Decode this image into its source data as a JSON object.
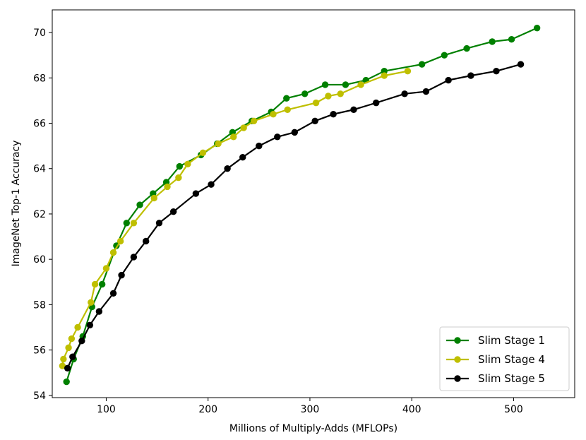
{
  "chart_data": {
    "type": "line",
    "title": "",
    "xlabel": "Millions of Multiply-Adds (MFLOPs)",
    "ylabel": "ImageNet Top-1 Accuracy",
    "xlim": [
      47,
      560
    ],
    "ylim": [
      53.9,
      71.0
    ],
    "xticks": [
      100,
      200,
      300,
      400,
      500
    ],
    "yticks": [
      54,
      56,
      58,
      60,
      62,
      64,
      66,
      68,
      70
    ],
    "grid": false,
    "legend_position": "lower-right",
    "series": [
      {
        "name": "Slim Stage 1",
        "color": "#008000",
        "points": [
          [
            61,
            54.6
          ],
          [
            68,
            55.6
          ],
          [
            77,
            56.6
          ],
          [
            86,
            57.9
          ],
          [
            96,
            58.9
          ],
          [
            110,
            60.6
          ],
          [
            120,
            61.6
          ],
          [
            133,
            62.4
          ],
          [
            146,
            62.9
          ],
          [
            159,
            63.4
          ],
          [
            172,
            64.1
          ],
          [
            193,
            64.6
          ],
          [
            209,
            65.1
          ],
          [
            224,
            65.6
          ],
          [
            243,
            66.1
          ],
          [
            262,
            66.5
          ],
          [
            277,
            67.1
          ],
          [
            295,
            67.3
          ],
          [
            315,
            67.7
          ],
          [
            335,
            67.7
          ],
          [
            355,
            67.9
          ],
          [
            373,
            68.3
          ],
          [
            410,
            68.6
          ],
          [
            432,
            69.0
          ],
          [
            454,
            69.3
          ],
          [
            479,
            69.6
          ],
          [
            498,
            69.7
          ],
          [
            523,
            70.2
          ]
        ]
      },
      {
        "name": "Slim Stage 4",
        "color": "#bfbf00",
        "points": [
          [
            57,
            55.3
          ],
          [
            58,
            55.6
          ],
          [
            63,
            56.1
          ],
          [
            66,
            56.5
          ],
          [
            72,
            57.0
          ],
          [
            85,
            58.1
          ],
          [
            89,
            58.9
          ],
          [
            100,
            59.6
          ],
          [
            107,
            60.3
          ],
          [
            114,
            60.8
          ],
          [
            127,
            61.6
          ],
          [
            147,
            62.7
          ],
          [
            160,
            63.2
          ],
          [
            171,
            63.6
          ],
          [
            180,
            64.2
          ],
          [
            195,
            64.7
          ],
          [
            210,
            65.1
          ],
          [
            225,
            65.4
          ],
          [
            235,
            65.8
          ],
          [
            245,
            66.1
          ],
          [
            264,
            66.4
          ],
          [
            278,
            66.6
          ],
          [
            306,
            66.9
          ],
          [
            318,
            67.2
          ],
          [
            330,
            67.3
          ],
          [
            350,
            67.7
          ],
          [
            373,
            68.1
          ],
          [
            396,
            68.3
          ]
        ]
      },
      {
        "name": "Slim Stage 5",
        "color": "#000000",
        "points": [
          [
            62,
            55.2
          ],
          [
            67,
            55.7
          ],
          [
            76,
            56.4
          ],
          [
            84,
            57.1
          ],
          [
            93,
            57.7
          ],
          [
            107,
            58.5
          ],
          [
            115,
            59.3
          ],
          [
            127,
            60.1
          ],
          [
            139,
            60.8
          ],
          [
            152,
            61.6
          ],
          [
            166,
            62.1
          ],
          [
            188,
            62.9
          ],
          [
            203,
            63.3
          ],
          [
            219,
            64.0
          ],
          [
            234,
            64.5
          ],
          [
            250,
            65.0
          ],
          [
            268,
            65.4
          ],
          [
            285,
            65.6
          ],
          [
            305,
            66.1
          ],
          [
            323,
            66.4
          ],
          [
            343,
            66.6
          ],
          [
            365,
            66.9
          ],
          [
            393,
            67.3
          ],
          [
            414,
            67.4
          ],
          [
            436,
            67.9
          ],
          [
            458,
            68.1
          ],
          [
            483,
            68.3
          ],
          [
            507,
            68.6
          ]
        ]
      }
    ]
  }
}
